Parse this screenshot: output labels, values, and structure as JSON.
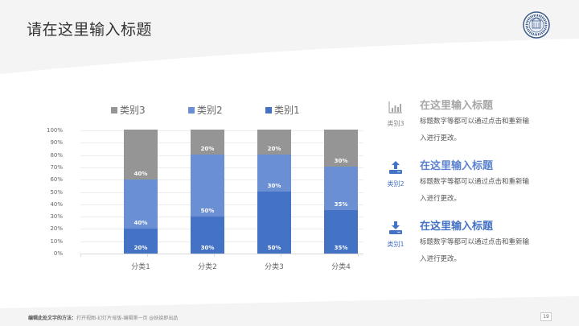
{
  "header": {
    "title": "请在这里输入标题"
  },
  "logo": {
    "icon": "university-seal-icon"
  },
  "chart_data": {
    "type": "bar",
    "stacked": true,
    "percent_stacked": true,
    "title": "",
    "xlabel": "",
    "ylabel": "",
    "ylim": [
      0,
      100
    ],
    "yticks": [
      "0%",
      "10%",
      "20%",
      "30%",
      "40%",
      "50%",
      "60%",
      "70%",
      "80%",
      "90%",
      "100%"
    ],
    "categories": [
      "分类1",
      "分类2",
      "分类3",
      "分类4"
    ],
    "legend_position": "top",
    "legend": [
      "类别3",
      "类别2",
      "类别1"
    ],
    "grid": true,
    "series": [
      {
        "name": "类别1",
        "color": "#4472c4",
        "values": [
          20,
          30,
          50,
          35
        ],
        "labels": [
          "20%",
          "30%",
          "50%",
          "35%"
        ]
      },
      {
        "name": "类别2",
        "color": "#6a8fd2",
        "values": [
          40,
          50,
          30,
          35
        ],
        "labels": [
          "40%",
          "50%",
          "30%",
          "35%"
        ]
      },
      {
        "name": "类别3",
        "color": "#959595",
        "values": [
          40,
          20,
          20,
          30
        ],
        "labels": [
          "40%",
          "20%",
          "20%",
          "30%"
        ]
      }
    ]
  },
  "info": [
    {
      "icon": "bar-chart-icon",
      "category": "类别3",
      "title": "在这里输入标题",
      "desc": "标题数字等都可以通过点击和重新输入进行更改。",
      "color": "#a6a6a6",
      "cat_color": "#888888"
    },
    {
      "icon": "upload-icon",
      "category": "类别2",
      "title": "在这里输入标题",
      "desc": "标题数字等都可以通过点击和重新输入进行更改。",
      "color": "#5b82d0",
      "cat_color": "#4472c4"
    },
    {
      "icon": "download-icon",
      "category": "类别1",
      "title": "在这里输入标题",
      "desc": "标题数字等都可以通过点击和重新输入进行更改。",
      "color": "#4472c4",
      "cat_color": "#4472c4"
    }
  ],
  "footer": {
    "label": "编辑此处文字的方法：",
    "text": "打开视图-幻灯片母版-编辑第一页 @妖娆即出品",
    "page_number": "19"
  }
}
